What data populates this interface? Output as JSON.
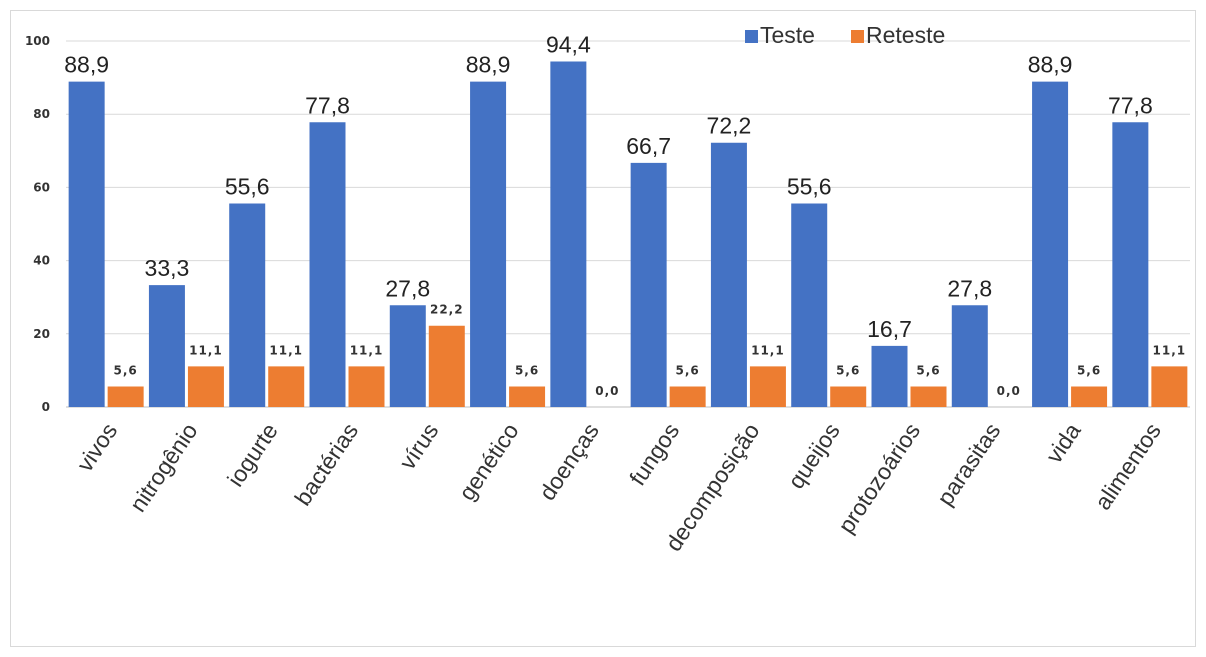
{
  "chart_data": {
    "type": "bar",
    "categories": [
      "vivos",
      "nitrogênio",
      "iogurte",
      "bactérias",
      "vírus",
      "genético",
      "doenças",
      "fungos",
      "decomposição",
      "queijos",
      "protozoários",
      "parasitas",
      "vida",
      "alimentos"
    ],
    "series": [
      {
        "name": "Teste",
        "color": "#4472C4",
        "values": [
          88.9,
          33.3,
          55.6,
          77.8,
          27.8,
          88.9,
          94.4,
          66.7,
          72.2,
          55.6,
          16.7,
          27.8,
          88.9,
          77.8
        ],
        "labels": [
          "88,9",
          "33,3",
          "55,6",
          "77,8",
          "27,8",
          "88,9",
          "94,4",
          "66,7",
          "72,2",
          "55,6",
          "16,7",
          "27,8",
          "88,9",
          "77,8"
        ]
      },
      {
        "name": "Reteste",
        "color": "#ED7D31",
        "values": [
          5.6,
          11.1,
          11.1,
          11.1,
          22.2,
          5.6,
          0.0,
          5.6,
          11.1,
          5.6,
          5.6,
          0.0,
          5.6,
          11.1
        ],
        "labels": [
          "5,6",
          "11,1",
          "11,1",
          "11,1",
          "22,2",
          "5,6",
          "0,0",
          "5,6",
          "11,1",
          "5,6",
          "5,6",
          "0,0",
          "5,6",
          "11,1"
        ]
      }
    ],
    "ylim": [
      0,
      100
    ],
    "yticks": [
      "0",
      "20",
      "40",
      "60",
      "80",
      "100"
    ],
    "grid": true,
    "legend": "top-right",
    "title": "",
    "xlabel": "",
    "ylabel": ""
  }
}
